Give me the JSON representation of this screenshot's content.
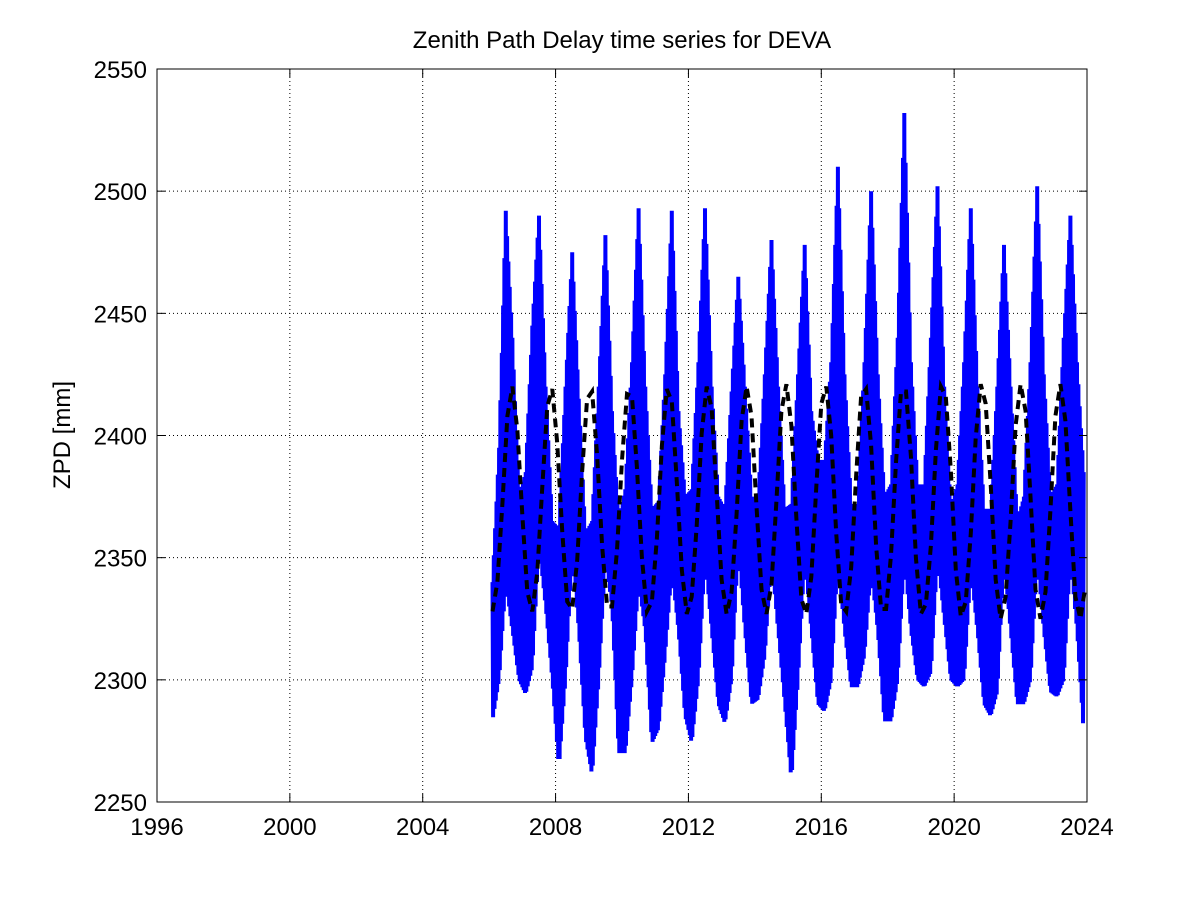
{
  "chart_data": {
    "type": "line",
    "title": "Zenith Path Delay time series for DEVA",
    "xlabel": "",
    "ylabel": "ZPD [mm]",
    "xlim": [
      1996,
      2024
    ],
    "ylim": [
      2250,
      2550
    ],
    "x_ticks": [
      "1996",
      "2000",
      "2004",
      "2008",
      "2012",
      "2016",
      "2020",
      "2024"
    ],
    "y_ticks": [
      "2250",
      "2300",
      "2350",
      "2400",
      "2450",
      "2500",
      "2550"
    ],
    "grid": true,
    "colors": {
      "observed": "#0000ff",
      "model": "#000000"
    },
    "series": [
      {
        "style": "solid-blue-thick",
        "x": [
          2006.1,
          2006.3,
          2006.5,
          2006.7,
          2006.9,
          2007.1,
          2007.3,
          2007.5,
          2007.7,
          2007.9,
          2008.1,
          2008.3,
          2008.5,
          2008.7,
          2008.9,
          2009.1,
          2009.3,
          2009.5,
          2009.7,
          2009.9,
          2010.1,
          2010.3,
          2010.5,
          2010.7,
          2010.9,
          2011.1,
          2011.3,
          2011.5,
          2011.7,
          2011.9,
          2012.1,
          2012.3,
          2012.5,
          2012.7,
          2012.9,
          2013.1,
          2013.3,
          2013.5,
          2013.7,
          2013.9,
          2014.1,
          2014.3,
          2014.5,
          2014.7,
          2014.9,
          2015.1,
          2015.3,
          2015.5,
          2015.7,
          2015.9,
          2016.1,
          2016.3,
          2016.5,
          2016.7,
          2016.9,
          2017.1,
          2017.3,
          2017.5,
          2017.7,
          2017.9,
          2018.1,
          2018.3,
          2018.5,
          2018.7,
          2018.9,
          2019.1,
          2019.3,
          2019.5,
          2019.7,
          2019.9,
          2020.1,
          2020.3,
          2020.5,
          2020.7,
          2020.9,
          2021.1,
          2021.3,
          2021.5,
          2021.7,
          2021.9,
          2022.1,
          2022.3,
          2022.5,
          2022.7,
          2022.9,
          2023.1,
          2023.3,
          2023.5,
          2023.7,
          2023.9
        ],
        "y_min": [
          2283,
          2300,
          2340,
          2320,
          2300,
          2294,
          2305,
          2355,
          2330,
          2300,
          2264,
          2300,
          2352,
          2320,
          2276,
          2261,
          2300,
          2350,
          2330,
          2270,
          2270,
          2300,
          2340,
          2320,
          2274,
          2280,
          2310,
          2345,
          2320,
          2285,
          2274,
          2300,
          2350,
          2320,
          2290,
          2282,
          2300,
          2355,
          2320,
          2290,
          2292,
          2310,
          2350,
          2320,
          2290,
          2259,
          2300,
          2350,
          2320,
          2290,
          2287,
          2300,
          2350,
          2320,
          2297,
          2297,
          2310,
          2345,
          2320,
          2283,
          2283,
          2300,
          2350,
          2320,
          2300,
          2297,
          2303,
          2350,
          2325,
          2300,
          2297,
          2300,
          2345,
          2320,
          2290,
          2285,
          2295,
          2350,
          2320,
          2290,
          2290,
          2300,
          2350,
          2320,
          2295,
          2293,
          2300,
          2350,
          2320,
          2278
        ],
        "y_max": [
          2340,
          2395,
          2492,
          2440,
          2375,
          2385,
          2445,
          2490,
          2420,
          2365,
          2362,
          2420,
          2475,
          2415,
          2360,
          2365,
          2420,
          2482,
          2410,
          2365,
          2378,
          2430,
          2493,
          2420,
          2370,
          2373,
          2425,
          2492,
          2410,
          2375,
          2378,
          2430,
          2493,
          2420,
          2375,
          2370,
          2418,
          2465,
          2420,
          2375,
          2375,
          2425,
          2480,
          2420,
          2370,
          2372,
          2425,
          2478,
          2410,
          2390,
          2390,
          2430,
          2510,
          2425,
          2372,
          2372,
          2430,
          2500,
          2425,
          2375,
          2380,
          2440,
          2532,
          2430,
          2380,
          2380,
          2440,
          2502,
          2420,
          2370,
          2380,
          2430,
          2493,
          2420,
          2370,
          2370,
          2420,
          2478,
          2420,
          2365,
          2375,
          2430,
          2502,
          2425,
          2375,
          2380,
          2440,
          2490,
          2430,
          2385
        ]
      },
      {
        "style": "dashed-black",
        "x": [
          2006.1,
          2006.25,
          2006.4,
          2006.55,
          2006.7,
          2006.85,
          2007.0,
          2007.15,
          2007.3,
          2007.45,
          2007.6,
          2007.75,
          2007.9,
          2008.05,
          2008.2,
          2008.35,
          2008.5,
          2008.65,
          2008.8,
          2008.95,
          2009.1,
          2009.25,
          2009.4,
          2009.55,
          2009.7,
          2009.85,
          2010.0,
          2010.15,
          2010.3,
          2010.45,
          2010.6,
          2010.75,
          2010.9,
          2011.05,
          2011.2,
          2011.35,
          2011.5,
          2011.65,
          2011.8,
          2011.95,
          2012.1,
          2012.25,
          2012.4,
          2012.55,
          2012.7,
          2012.85,
          2013.0,
          2013.15,
          2013.3,
          2013.45,
          2013.6,
          2013.75,
          2013.9,
          2014.05,
          2014.2,
          2014.35,
          2014.5,
          2014.65,
          2014.8,
          2014.95,
          2015.1,
          2015.25,
          2015.4,
          2015.55,
          2015.7,
          2015.85,
          2016.0,
          2016.15,
          2016.3,
          2016.45,
          2016.6,
          2016.75,
          2016.9,
          2017.05,
          2017.2,
          2017.35,
          2017.5,
          2017.65,
          2017.8,
          2017.95,
          2018.1,
          2018.25,
          2018.4,
          2018.55,
          2018.7,
          2018.85,
          2019.0,
          2019.15,
          2019.3,
          2019.45,
          2019.6,
          2019.75,
          2019.9,
          2020.05,
          2020.2,
          2020.35,
          2020.5,
          2020.65,
          2020.8,
          2020.95,
          2021.1,
          2021.25,
          2021.4,
          2021.55,
          2021.7,
          2021.85,
          2022.0,
          2022.15,
          2022.3,
          2022.45,
          2022.6,
          2022.75,
          2022.9,
          2023.05,
          2023.2,
          2023.35,
          2023.5,
          2023.65,
          2023.8,
          2023.95
        ],
        "y": [
          2328,
          2340,
          2372,
          2408,
          2420,
          2402,
          2367,
          2336,
          2328,
          2344,
          2379,
          2412,
          2419,
          2397,
          2361,
          2332,
          2329,
          2349,
          2385,
          2415,
          2418,
          2392,
          2355,
          2330,
          2330,
          2353,
          2390,
          2417,
          2416,
          2387,
          2350,
          2328,
          2332,
          2358,
          2396,
          2419,
          2414,
          2381,
          2345,
          2327,
          2334,
          2363,
          2401,
          2420,
          2411,
          2376,
          2341,
          2327,
          2336,
          2368,
          2406,
          2420,
          2408,
          2371,
          2337,
          2327,
          2339,
          2373,
          2410,
          2421,
          2404,
          2366,
          2333,
          2327,
          2342,
          2379,
          2413,
          2420,
          2400,
          2360,
          2331,
          2328,
          2346,
          2384,
          2416,
          2419,
          2396,
          2355,
          2329,
          2329,
          2351,
          2389,
          2418,
          2418,
          2391,
          2350,
          2327,
          2331,
          2355,
          2394,
          2420,
          2416,
          2386,
          2345,
          2326,
          2332,
          2360,
          2399,
          2421,
          2413,
          2380,
          2341,
          2325,
          2334,
          2365,
          2404,
          2421,
          2410,
          2375,
          2337,
          2325,
          2336,
          2370,
          2408,
          2421,
          2406,
          2369,
          2334,
          2325,
          2338
        ]
      }
    ]
  }
}
